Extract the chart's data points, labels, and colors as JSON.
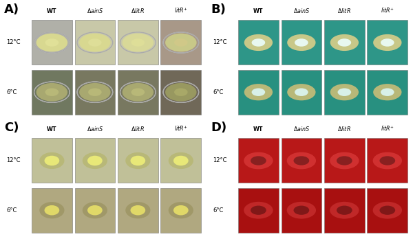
{
  "figure_width": 6.0,
  "figure_height": 3.51,
  "background_color": "#ffffff",
  "panels": {
    "A": {
      "label": "A)",
      "row_labels": [
        "12°C",
        "6°C"
      ],
      "plate_bg_12": [
        "#b0b0a8",
        "#c8c8a8",
        "#c8c8a8",
        "#a89888"
      ],
      "plate_bg_6": [
        "#707860",
        "#787860",
        "#787860",
        "#706858"
      ],
      "colony_outer_12": [
        "#d8d890",
        "#d8d890",
        "#d8d898",
        "#c8c888"
      ],
      "colony_inner_12": [
        "#e0e098",
        "#dede98",
        "#dede98",
        "#d0c888"
      ],
      "colony_outer_6": [
        "#a8a870",
        "#a8a870",
        "#a8a870",
        "#989860"
      ],
      "colony_inner_6": [
        "#b8b878",
        "#b8b878",
        "#b8b878",
        "#a8a868"
      ]
    },
    "B": {
      "label": "B)",
      "row_labels": [
        "12°C",
        "6°C"
      ],
      "plate_bg_12": [
        "#2e9688",
        "#2e9688",
        "#2e9688",
        "#2e9688"
      ],
      "plate_bg_6": [
        "#289080",
        "#289080",
        "#289080",
        "#289080"
      ],
      "colony_outer_12": [
        "#c8c888",
        "#c8c888",
        "#c8c888",
        "#c8c888"
      ],
      "colony_inner_12": [
        "#e8f8f0",
        "#e8f8f0",
        "#e8f8f0",
        "#e8f8f0"
      ],
      "colony_outer_6": [
        "#b8b878",
        "#b8b878",
        "#b8b878",
        "#b8b878"
      ],
      "colony_inner_6": [
        "#d8f0e8",
        "#d8f0e8",
        "#d8f0e8",
        "#d8f0e8"
      ]
    },
    "C": {
      "label": "C)",
      "row_labels": [
        "12°C",
        "6°C"
      ],
      "plate_bg_12": [
        "#c0c098",
        "#c0c098",
        "#c0c098",
        "#c0c098"
      ],
      "plate_bg_6": [
        "#b0a880",
        "#b0a880",
        "#b0a880",
        "#b0a880"
      ],
      "colony_outer_12": [
        "#b8b878",
        "#b8b878",
        "#b8b878",
        "#b8b878"
      ],
      "colony_inner_12": [
        "#e8e878",
        "#e8e878",
        "#e8e878",
        "#e8e878"
      ],
      "colony_outer_6": [
        "#a09868",
        "#a09868",
        "#a09868",
        "#a09868"
      ],
      "colony_inner_6": [
        "#e0d868",
        "#e0d868",
        "#e0d868",
        "#e0d868"
      ]
    },
    "D": {
      "label": "D)",
      "row_labels": [
        "12°C",
        "6°C"
      ],
      "plate_bg_12": [
        "#b81818",
        "#b81818",
        "#b81818",
        "#b81818"
      ],
      "plate_bg_6": [
        "#a81010",
        "#a81010",
        "#a81010",
        "#a81010"
      ],
      "colony_outer_12": [
        "#d03030",
        "#d03030",
        "#d03030",
        "#d03030"
      ],
      "colony_inner_12": [
        "#882020",
        "#882020",
        "#882020",
        "#882020"
      ],
      "colony_outer_6": [
        "#c02828",
        "#c02828",
        "#c02828",
        "#c02828"
      ],
      "colony_inner_6": [
        "#801818",
        "#801818",
        "#801818",
        "#801818"
      ]
    }
  },
  "col_labels": [
    "WT",
    "ΔainS",
    "ΔlitR",
    "litR⁺"
  ]
}
